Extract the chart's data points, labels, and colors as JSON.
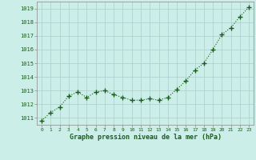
{
  "x": [
    0,
    1,
    2,
    3,
    4,
    5,
    6,
    7,
    8,
    9,
    10,
    11,
    12,
    13,
    14,
    15,
    16,
    17,
    18,
    19,
    20,
    21,
    22,
    23
  ],
  "y": [
    1010.8,
    1011.4,
    1011.8,
    1012.6,
    1012.9,
    1012.5,
    1012.9,
    1013.0,
    1012.7,
    1012.5,
    1012.3,
    1012.3,
    1012.4,
    1012.3,
    1012.5,
    1013.1,
    1013.7,
    1014.5,
    1015.0,
    1016.0,
    1017.1,
    1017.6,
    1018.4,
    1019.1
  ],
  "line_color": "#1a5c1a",
  "marker_color": "#1a5c1a",
  "bg_color": "#cceee8",
  "grid_color": "#aacccc",
  "xlabel": "Graphe pression niveau de la mer (hPa)",
  "xlabel_color": "#1a5c1a",
  "ylim": [
    1010.5,
    1019.5
  ],
  "xlim": [
    -0.5,
    23.5
  ],
  "yticks": [
    1011,
    1012,
    1013,
    1014,
    1015,
    1016,
    1017,
    1018,
    1019
  ],
  "xtick_labels": [
    "0",
    "1",
    "2",
    "3",
    "4",
    "5",
    "6",
    "7",
    "8",
    "9",
    "10",
    "11",
    "12",
    "13",
    "14",
    "15",
    "16",
    "17",
    "18",
    "19",
    "20",
    "21",
    "22",
    "23"
  ]
}
